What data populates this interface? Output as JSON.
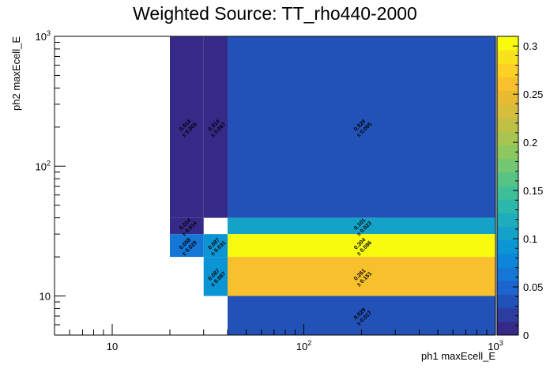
{
  "chart_data": {
    "type": "heatmap",
    "title": "Weighted Source: TT_rho440-2000",
    "xlabel": "ph1 maxEcell_E",
    "ylabel": "ph2 maxEcell_E",
    "x_scale": "log",
    "y_scale": "log",
    "xlim": [
      5,
      1000
    ],
    "ylim": [
      5,
      1000
    ],
    "x_tick_labels": [
      "10",
      "10^2",
      "10^3"
    ],
    "y_tick_labels": [
      "10",
      "10^2",
      "10^3"
    ],
    "cells": [
      {
        "x": [
          20,
          30
        ],
        "y": [
          40,
          1000
        ],
        "value": 0.014,
        "label": "0.014",
        "error": "± 0.005"
      },
      {
        "x": [
          30,
          40
        ],
        "y": [
          40,
          1000
        ],
        "value": 0.014,
        "label": "0.014",
        "error": "± 0.007"
      },
      {
        "x": [
          40,
          1000
        ],
        "y": [
          40,
          1000
        ],
        "value": 0.029,
        "label": "0.029",
        "error": "± 0.005"
      },
      {
        "x": [
          20,
          30
        ],
        "y": [
          30,
          40
        ],
        "value": 0.014,
        "label": "0.014",
        "error": "± 0.014"
      },
      {
        "x": [
          40,
          1000
        ],
        "y": [
          30,
          40
        ],
        "value": 0.101,
        "label": "0.101",
        "error": "± 0.023"
      },
      {
        "x": [
          20,
          30
        ],
        "y": [
          20,
          30
        ],
        "value": 0.058,
        "label": "0.058",
        "error": "± 0.029"
      },
      {
        "x": [
          30,
          40
        ],
        "y": [
          20,
          30
        ],
        "value": 0.087,
        "label": "0.087",
        "error": "± 0.031"
      },
      {
        "x": [
          40,
          1000
        ],
        "y": [
          20,
          30
        ],
        "value": 0.304,
        "label": "0.304",
        "error": "± 0.086"
      },
      {
        "x": [
          30,
          40
        ],
        "y": [
          10,
          20
        ],
        "value": 0.087,
        "label": "0.087",
        "error": "± 0.087"
      },
      {
        "x": [
          40,
          1000
        ],
        "y": [
          10,
          20
        ],
        "value": 0.261,
        "label": "0.261",
        "error": "± 0.151"
      },
      {
        "x": [
          40,
          1000
        ],
        "y": [
          5,
          10
        ],
        "value": 0.029,
        "label": "0.029",
        "error": "± 0.017"
      }
    ],
    "colorbar": {
      "min": 0,
      "max": 0.31,
      "tick_values": [
        0,
        0.05,
        0.1,
        0.15,
        0.2,
        0.25,
        0.3
      ],
      "tick_labels": [
        "0",
        "0.05",
        "0.1",
        "0.15",
        "0.2",
        "0.25",
        "0.3"
      ],
      "palette": [
        "#352a87",
        "#2c3d9f",
        "#2251b7",
        "#1c65cc",
        "#1576d6",
        "#0b86d8",
        "#0b95d4",
        "#15a2c9",
        "#1fadbb",
        "#2bb7ab",
        "#3fbf98",
        "#57c484",
        "#72c770",
        "#8dc75f",
        "#a7c550",
        "#c0c144",
        "#d6bd3b",
        "#e9bb33",
        "#f7c02c",
        "#fcd124",
        "#f8e21b",
        "#f9fb0e"
      ]
    },
    "grid": false,
    "legend": "none"
  }
}
